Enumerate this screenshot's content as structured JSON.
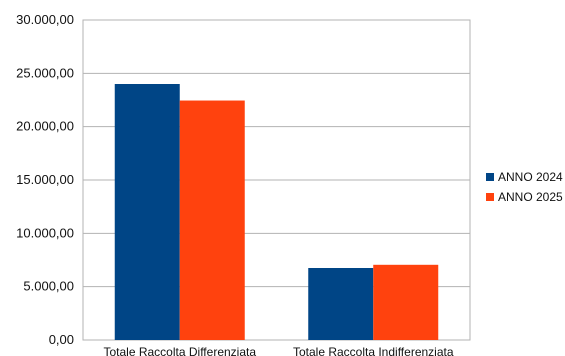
{
  "chart_data": {
    "type": "bar",
    "title": "",
    "xlabel": "",
    "ylabel": "",
    "categories": [
      "Totale Raccolta Differenziata",
      "Totale Raccolta Indifferenziata"
    ],
    "series": [
      {
        "name": "ANNO 2024",
        "color": "#004586",
        "values": [
          24000,
          6750
        ]
      },
      {
        "name": "ANNO 2025",
        "color": "#ff420e",
        "values": [
          22450,
          7050
        ]
      }
    ],
    "ylim": [
      0,
      30000
    ],
    "ytick_values": [
      0,
      5000,
      10000,
      15000,
      20000,
      25000,
      30000
    ],
    "ytick_labels": [
      "0,00",
      "5.000,00",
      "10.000,00",
      "15.000,00",
      "20.000,00",
      "25.000,00",
      "30.000,00"
    ],
    "grid": true,
    "grid_color": "#b3b3b3",
    "legend_position": "right"
  }
}
